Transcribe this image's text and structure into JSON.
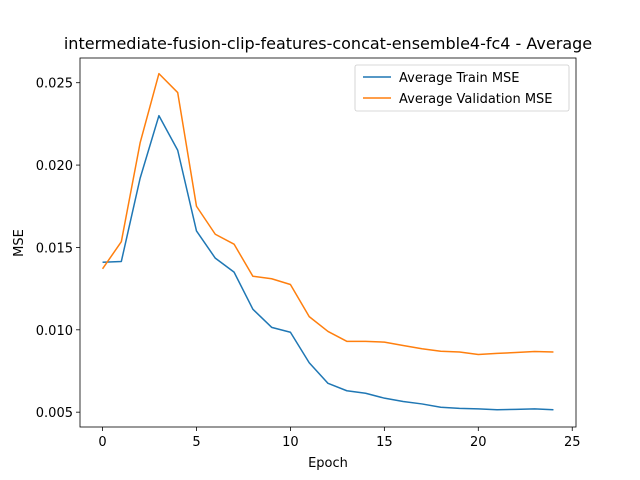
{
  "chart_data": {
    "type": "line",
    "title": "intermediate-fusion-clip-features-concat-ensemble4-fc4 - Average",
    "xlabel": "Epoch",
    "ylabel": "MSE",
    "xlim": [
      -1.2,
      25.2
    ],
    "ylim": [
      0.0041,
      0.0265
    ],
    "xticks": [
      0,
      5,
      10,
      15,
      20,
      25
    ],
    "yticks": [
      0.005,
      0.01,
      0.015,
      0.02,
      0.025
    ],
    "ytick_labels": [
      "0.005",
      "0.010",
      "0.015",
      "0.020",
      "0.025"
    ],
    "grid": false,
    "legend_position": "top-right",
    "x": [
      0,
      1,
      2,
      3,
      4,
      5,
      6,
      7,
      8,
      9,
      10,
      11,
      12,
      13,
      14,
      15,
      16,
      17,
      18,
      19,
      20,
      21,
      22,
      23,
      24
    ],
    "series": [
      {
        "name": "Average Train MSE",
        "color": "#1f77b4",
        "values": [
          0.0141,
          0.01415,
          0.0192,
          0.023,
          0.0209,
          0.016,
          0.01435,
          0.0135,
          0.01125,
          0.01015,
          0.00985,
          0.008,
          0.00675,
          0.0063,
          0.00615,
          0.00585,
          0.00565,
          0.0055,
          0.0053,
          0.00523,
          0.0052,
          0.00515,
          0.00517,
          0.0052,
          0.00515
        ]
      },
      {
        "name": "Average Validation MSE",
        "color": "#ff7f0e",
        "values": [
          0.0137,
          0.01535,
          0.02135,
          0.02555,
          0.0244,
          0.0175,
          0.0158,
          0.0152,
          0.01325,
          0.0131,
          0.01275,
          0.0108,
          0.0099,
          0.0093,
          0.0093,
          0.00925,
          0.00905,
          0.00885,
          0.0087,
          0.00865,
          0.0085,
          0.00857,
          0.00862,
          0.00868,
          0.00865
        ]
      }
    ]
  }
}
